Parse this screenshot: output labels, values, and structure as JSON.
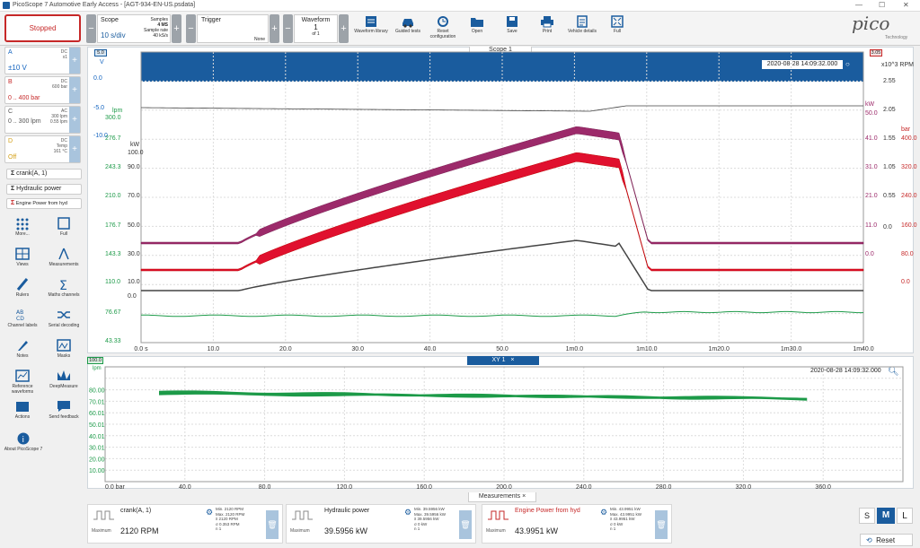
{
  "window": {
    "title": "PicoScope 7 Automotive Early Access - [AGT-934-EN-US.psdata]",
    "min": "—",
    "max": "☐",
    "close": "✕"
  },
  "toolbar": {
    "stopped": "Stopped",
    "scope_label": "Scope",
    "scope_value": "10 s/div",
    "samples_label": "Samples",
    "samples_value": "4 MS",
    "sample_rate_label": "Sample rate",
    "sample_rate_value": "40 kS/s",
    "trigger_label": "Trigger",
    "trigger_value": "None",
    "waveform_label": "Waveform",
    "waveform_value": "1",
    "waveform_of": "of 1",
    "tools": [
      {
        "label": "Waveform library",
        "icon": "book-icon"
      },
      {
        "label": "Guided tests",
        "icon": "car-icon"
      },
      {
        "label": "Reset configuration",
        "icon": "reset-icon"
      },
      {
        "label": "Open",
        "icon": "folder-icon"
      },
      {
        "label": "Save",
        "icon": "save-icon"
      },
      {
        "label": "Print",
        "icon": "print-icon"
      },
      {
        "label": "Vehicle details",
        "icon": "clipboard-icon"
      },
      {
        "label": "Full",
        "icon": "fullscreen-icon"
      }
    ],
    "logo": "pico",
    "logo_sub": "Technology"
  },
  "channels": [
    {
      "letter": "A",
      "range": "±10 V",
      "coupling": "DC",
      "probe": "x1",
      "color": "#1565c0"
    },
    {
      "letter": "B",
      "range": "0 .. 400 bar",
      "coupling": "DC",
      "probe": "600 bar",
      "color": "#c62828"
    },
    {
      "letter": "C",
      "range": "0 .. 300 lpm",
      "coupling": "AC",
      "probe": "300 lpm",
      "extra": "0.55 lpm",
      "color": "#777777"
    },
    {
      "letter": "D",
      "range": "Off",
      "coupling": "DC",
      "probe": "Temp",
      "extra": "161 °C",
      "color": "#d4a017"
    }
  ],
  "math": [
    {
      "label": "crank(A, 1)",
      "color": "#333333"
    },
    {
      "label": "Hydraulic power",
      "color": "#333333"
    },
    {
      "label": "Engine Power from hyd",
      "color": "#c62828"
    }
  ],
  "sidebar": [
    {
      "label": "More...",
      "icon": "dots-grid-icon"
    },
    {
      "label": "Full",
      "icon": "fullscreen-icon"
    },
    {
      "label": "Views",
      "icon": "views-grid-icon"
    },
    {
      "label": "Measurements",
      "icon": "compass-icon"
    },
    {
      "label": "Rulers",
      "icon": "ruler-icon"
    },
    {
      "label": "Maths channels",
      "icon": "sigma-icon"
    },
    {
      "label": "Channel labels",
      "icon": "abcd-icon"
    },
    {
      "label": "Serial decoding",
      "icon": "serial-icon"
    },
    {
      "label": "Notes",
      "icon": "notes-icon"
    },
    {
      "label": "Masks",
      "icon": "masks-icon"
    },
    {
      "label": "Reference waveforms",
      "icon": "reference-icon"
    },
    {
      "label": "DeepMeasure",
      "icon": "deepmeasure-icon"
    },
    {
      "label": "Actions",
      "icon": "clapper-icon"
    },
    {
      "label": "Send feedback",
      "icon": "feedback-icon"
    },
    {
      "label": "About PicoScope 7",
      "icon": "info-icon"
    }
  ],
  "scope": {
    "tab": "Scope 1",
    "timestamp": "2020-08-28 14:09:32.000",
    "left_units": [
      "V",
      "lpm",
      "kW"
    ],
    "axis_v": [
      "5.0",
      "0.0",
      "-5.0",
      "-10.0"
    ],
    "axis_lpm": [
      "300.0",
      "276.7",
      "243.3",
      "210.0",
      "176.7",
      "143.3",
      "110.0",
      "76.67",
      "43.33"
    ],
    "axis_kw": [
      "100.0",
      "90.0",
      "70.0",
      "50.0",
      "30.0",
      "10.0",
      "0.0"
    ],
    "right_rpm_unit": "x10^3 RPM",
    "axis_rpm": [
      "3.05",
      "2.55",
      "2.05",
      "1.55",
      "1.05",
      "0.55",
      "0.0"
    ],
    "right_kw_unit": "kW",
    "axis_rkw": [
      "50.0",
      "41.0",
      "31.0",
      "21.0",
      "11.0",
      "0.0"
    ],
    "right_bar_unit": "bar",
    "axis_bar": [
      "400.0",
      "320.0",
      "240.0",
      "160.0",
      "80.0",
      "0.0"
    ],
    "x_ticks": [
      "0.0 s",
      "10.0",
      "20.0",
      "30.0",
      "40.0",
      "50.0",
      "1m0.0",
      "1m10.0",
      "1m20.0",
      "1m30.0",
      "1m40.0"
    ]
  },
  "xy": {
    "tab": "XY 1",
    "close": "×",
    "timestamp": "2020-08-28 14:09:32.000",
    "y_top": "100.0",
    "y_unit": "lpm",
    "y_ticks": [
      "80.00",
      "70.01",
      "60.01",
      "50.01",
      "40.01",
      "30.01",
      "20.00",
      "10.00"
    ],
    "x_ticks": [
      "0.0 bar",
      "40.0",
      "80.0",
      "120.0",
      "160.0",
      "200.0",
      "240.0",
      "280.0",
      "320.0",
      "360.0"
    ]
  },
  "measurements": {
    "tab": "Measurements",
    "close": "×",
    "cards": [
      {
        "name": "crank(A, 1)",
        "type": "Maximum",
        "value": "2120 RPM",
        "stats": [
          "Min. 2120 RPM",
          "Max. 2120 RPM",
          "x̄ 2120 RPM",
          "σ 0.353 RPM",
          "n 1"
        ],
        "color": "#333333"
      },
      {
        "name": "Hydraulic power",
        "type": "Maximum",
        "value": "39.5956 kW",
        "stats": [
          "Min. 39.5956 kW",
          "Max. 39.5956 kW",
          "x̄ 39.5956 kW",
          "σ 0 kW",
          "n 1"
        ],
        "color": "#333333"
      },
      {
        "name": "Engine Power from hyd",
        "type": "Maximum",
        "value": "43.9951 kW",
        "stats": [
          "Min. 43.9951 kW",
          "Max. 43.9951 kW",
          "x̄ 43.9951 kW",
          "σ 0 kW",
          "n 1"
        ],
        "color": "#c62828"
      }
    ],
    "sizes": [
      "S",
      "M",
      "L"
    ],
    "reset": "Reset"
  },
  "colors": {
    "accent": "#1a5c9e",
    "stop": "#c62828",
    "purple": "#9c2a6a",
    "red": "#e0102e",
    "dark": "#444444",
    "green": "#1c9a48"
  }
}
